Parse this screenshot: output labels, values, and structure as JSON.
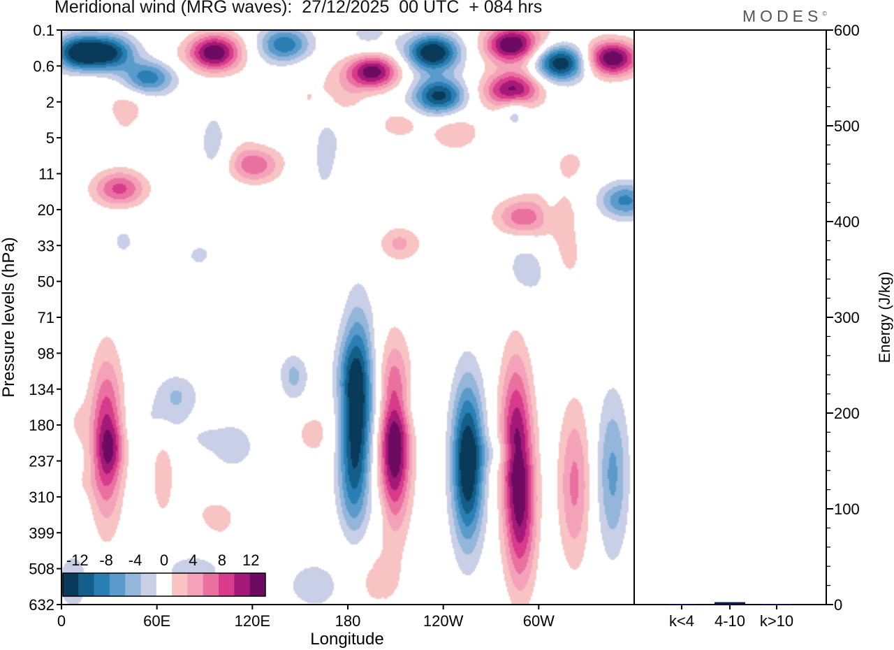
{
  "header": {
    "title": "Meridional wind (MRG waves):  27/12/2025  00 UTC  + 084 hrs",
    "brand": "MODES",
    "brand_mark": "©"
  },
  "chart_data": [
    {
      "type": "heatmap",
      "title": "Meridional wind (MRG waves):  27/12/2025  00 UTC  + 084 hrs",
      "xlabel": "Longitude",
      "ylabel": "Pressure levels (hPa)",
      "x_ticks": [
        "0",
        "60E",
        "120E",
        "180",
        "120W",
        "60W"
      ],
      "y_ticks": [
        "0.1",
        "0.6",
        "2",
        "5",
        "11",
        "20",
        "33",
        "50",
        "71",
        "98",
        "134",
        "180",
        "237",
        "310",
        "399",
        "508",
        "632"
      ],
      "xlim": [
        0,
        360
      ],
      "colorbar": {
        "labels": [
          "-12",
          "-8",
          "-4",
          "0",
          "4",
          "8",
          "12"
        ],
        "levels": [
          -14,
          -12,
          -10,
          -8,
          -6,
          -4,
          -2,
          2,
          4,
          6,
          8,
          10,
          12,
          14
        ],
        "colors": [
          "#0a3a5a",
          "#135f8a",
          "#2a80b5",
          "#5b9bcb",
          "#93b6da",
          "#c9cfe6",
          "#ffffff",
          "#f7c3c3",
          "#f3a2b9",
          "#e9709f",
          "#d83a8c",
          "#a51a78",
          "#6d0a62"
        ]
      },
      "features": [
        {
          "lon": 12,
          "level": 0.3,
          "value": -14
        },
        {
          "lon": 31,
          "level": 0.3,
          "value": -10
        },
        {
          "lon": 53,
          "level": 0.9,
          "value": -11
        },
        {
          "lon": 96,
          "level": 0.3,
          "value": 14
        },
        {
          "lon": 140,
          "level": 0.2,
          "value": -9
        },
        {
          "lon": 195,
          "level": 0.7,
          "value": 14
        },
        {
          "lon": 233,
          "level": 0.3,
          "value": -14
        },
        {
          "lon": 237,
          "level": 1.6,
          "value": -12
        },
        {
          "lon": 282,
          "level": 0.2,
          "value": 13
        },
        {
          "lon": 283,
          "level": 1.3,
          "value": 12
        },
        {
          "lon": 313,
          "level": 0.5,
          "value": -14
        },
        {
          "lon": 346,
          "level": 0.4,
          "value": 14
        },
        {
          "lon": 121,
          "level": 9,
          "value": 7
        },
        {
          "lon": 36,
          "level": 14,
          "value": 8
        },
        {
          "lon": 288,
          "level": 22,
          "value": 6
        },
        {
          "lon": 354,
          "level": 17,
          "value": -8
        },
        {
          "lon": 28,
          "level": 200,
          "value": 10
        },
        {
          "lon": 186,
          "level": 130,
          "value": -10
        },
        {
          "lon": 183,
          "level": 260,
          "value": -8
        },
        {
          "lon": 209,
          "level": 200,
          "value": 14
        },
        {
          "lon": 255,
          "level": 240,
          "value": -14
        },
        {
          "lon": 285,
          "level": 180,
          "value": 8
        },
        {
          "lon": 288,
          "level": 340,
          "value": 10
        },
        {
          "lon": 322,
          "level": 280,
          "value": 6
        },
        {
          "lon": 346,
          "level": 260,
          "value": -6
        }
      ]
    },
    {
      "type": "bar",
      "ylabel": "Energy (J/kg)",
      "categories": [
        "k<4",
        "4-10",
        "k>10"
      ],
      "values": [
        0.3,
        2.5,
        0.4
      ],
      "ylim": [
        0,
        600
      ],
      "y_ticks": [
        "0",
        "100",
        "200",
        "300",
        "400",
        "500",
        "600"
      ]
    }
  ]
}
